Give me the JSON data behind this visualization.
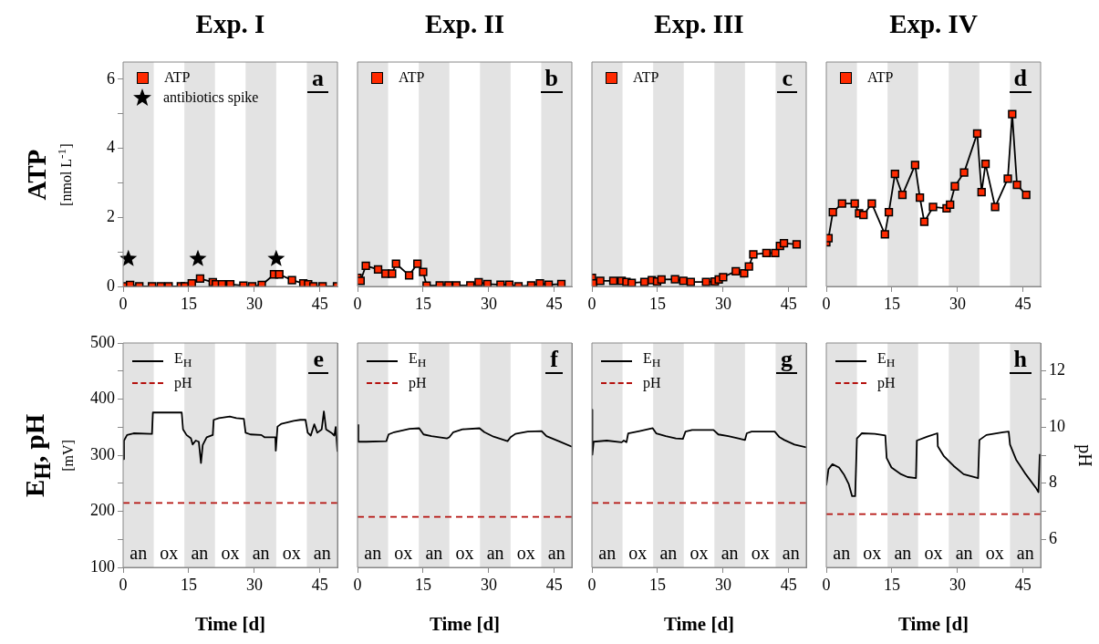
{
  "chart_data": [
    {
      "type": "line",
      "title": "Exp. I",
      "ylabel": "ATP\n[nmol L$^{-1}$]",
      "xlim": [
        0,
        49
      ],
      "xticks": [
        0,
        15,
        30,
        45
      ],
      "ylim": [
        0,
        6.5
      ],
      "yticks": [
        0,
        {
          "value": 1,
          "label": null
        },
        2,
        {
          "value": 3,
          "label": null
        },
        4,
        {
          "value": 5,
          "label": null
        },
        6
      ],
      "legend": "top left",
      "marker": "square",
      "annotations": [
        "a"
      ],
      "bands": [
        {
          "axis": "x",
          "from": 0,
          "to": 7,
          "color": "#e3e3e3"
        },
        {
          "axis": "x",
          "from": 14,
          "to": 21,
          "color": "#e3e3e3"
        },
        {
          "axis": "x",
          "from": 28,
          "to": 35,
          "color": "#e3e3e3"
        },
        {
          "axis": "x",
          "from": 42,
          "to": 49,
          "color": "#e3e3e3"
        }
      ],
      "series": [
        {
          "name": "ATP",
          "color": "#ff2a00",
          "x": [
            0,
            1.6,
            3.7,
            6.6,
            8.6,
            10.4,
            13.2,
            14.1,
            15.7,
            17.6,
            20.5,
            21.2,
            22.6,
            24.5,
            27.5,
            29.5,
            31.7,
            34.5,
            35.7,
            38.6,
            41.2,
            42.3,
            43.5,
            45.6,
            48.9
          ],
          "values": [
            0,
            0.04,
            0,
            0,
            0,
            0,
            0,
            0,
            0.09,
            0.23,
            0.12,
            0.06,
            0.06,
            0.06,
            0.02,
            0,
            0.04,
            0.35,
            0.35,
            0.18,
            0.09,
            0.06,
            0,
            0,
            0
          ]
        },
        {
          "name": "antibiotics spike",
          "type": "scatter",
          "marker": "star",
          "color": "#000000",
          "x": [
            1.2,
            17.1,
            35.0
          ],
          "values": [
            0.8,
            0.8,
            0.8
          ]
        }
      ]
    },
    {
      "type": "line",
      "title": "Exp. II",
      "xlim": [
        0,
        49
      ],
      "xticks": [
        0,
        15,
        30,
        45
      ],
      "ylim": [
        0,
        6.5
      ],
      "legend": "top left",
      "marker": "square",
      "annotations": [
        "b"
      ],
      "bands": [
        {
          "axis": "x",
          "from": 0,
          "to": 7,
          "color": "#e3e3e3"
        },
        {
          "axis": "x",
          "from": 14,
          "to": 21,
          "color": "#e3e3e3"
        },
        {
          "axis": "x",
          "from": 28,
          "to": 35,
          "color": "#e3e3e3"
        },
        {
          "axis": "x",
          "from": 42,
          "to": 49,
          "color": "#e3e3e3"
        }
      ],
      "series": [
        {
          "name": "ATP",
          "color": "#ff2a00",
          "x": [
            0,
            0.7,
            1.9,
            4.7,
            6.4,
            7.9,
            8.8,
            11.8,
            13.7,
            15.0,
            15.8,
            18.8,
            20.8,
            22.6,
            25.8,
            27.7,
            29.7,
            32.7,
            34.7,
            36.8,
            39.7,
            41.7,
            43.7,
            46.6
          ],
          "values": [
            0.25,
            0.16,
            0.6,
            0.49,
            0.37,
            0.37,
            0.66,
            0.32,
            0.66,
            0.42,
            0.02,
            0.03,
            0.03,
            0.03,
            0.03,
            0.12,
            0.07,
            0.05,
            0.05,
            0,
            0.03,
            0.09,
            0.05,
            0.07
          ]
        }
      ]
    },
    {
      "type": "line",
      "title": "Exp. III",
      "xlim": [
        0,
        49
      ],
      "xticks": [
        0,
        15,
        30,
        45
      ],
      "ylim": [
        0,
        6.5
      ],
      "legend": "top left",
      "marker": "square",
      "annotations": [
        "c"
      ],
      "bands": [
        {
          "axis": "x",
          "from": 0,
          "to": 7,
          "color": "#e3e3e3"
        },
        {
          "axis": "x",
          "from": 14,
          "to": 21,
          "color": "#e3e3e3"
        },
        {
          "axis": "x",
          "from": 28,
          "to": 35,
          "color": "#e3e3e3"
        },
        {
          "axis": "x",
          "from": 42,
          "to": 49,
          "color": "#e3e3e3"
        }
      ],
      "series": [
        {
          "name": "ATP",
          "color": "#ff2a00",
          "x": [
            0,
            0.3,
            1.9,
            4.9,
            6.8,
            7.9,
            9.1,
            12.0,
            13.7,
            14.9,
            15.9,
            19.0,
            20.9,
            22.6,
            26.1,
            28.1,
            29.0,
            30.0,
            32.9,
            34.8,
            35.9,
            36.9,
            39.9,
            41.9,
            43.0,
            43.9,
            46.8
          ],
          "values": [
            0.25,
            0.09,
            0.16,
            0.16,
            0.16,
            0.13,
            0.1,
            0.13,
            0.18,
            0.14,
            0.2,
            0.21,
            0.16,
            0.13,
            0.13,
            0.14,
            0.2,
            0.27,
            0.44,
            0.38,
            0.58,
            0.93,
            0.97,
            0.97,
            1.17,
            1.25,
            1.22
          ]
        }
      ]
    },
    {
      "type": "line",
      "title": "Exp. IV",
      "xlim": [
        0,
        49
      ],
      "xticks": [
        0,
        15,
        30,
        45
      ],
      "ylim": [
        0,
        6.5
      ],
      "legend": "top left",
      "marker": "square",
      "annotations": [
        "d"
      ],
      "bands": [
        {
          "axis": "x",
          "from": 0,
          "to": 7,
          "color": "#e3e3e3"
        },
        {
          "axis": "x",
          "from": 14,
          "to": 21,
          "color": "#e3e3e3"
        },
        {
          "axis": "x",
          "from": 28,
          "to": 35,
          "color": "#e3e3e3"
        },
        {
          "axis": "x",
          "from": 42,
          "to": 49,
          "color": "#e3e3e3"
        }
      ],
      "series": [
        {
          "name": "ATP",
          "color": "#ff2a00",
          "x": [
            0,
            0.5,
            1.5,
            3.6,
            6.5,
            7.5,
            8.5,
            10.4,
            13.4,
            14.3,
            15.7,
            17.4,
            20.3,
            21.4,
            22.4,
            24.4,
            27.5,
            28.3,
            29.4,
            31.5,
            34.5,
            35.5,
            36.4,
            38.6,
            41.5,
            42.5,
            43.6,
            45.7
          ],
          "values": [
            1.28,
            1.4,
            2.15,
            2.4,
            2.4,
            2.12,
            2.07,
            2.4,
            1.51,
            2.15,
            3.26,
            2.65,
            3.52,
            2.57,
            1.87,
            2.3,
            2.26,
            2.37,
            2.9,
            3.3,
            4.43,
            2.73,
            3.55,
            2.3,
            3.12,
            4.99,
            2.94,
            2.65
          ]
        }
      ]
    },
    {
      "type": "line",
      "xlabel": "Time [d]",
      "ylabel": "E$_{H}$, pH\n[mV]",
      "xlim": [
        0,
        49
      ],
      "xticks": [
        0,
        15,
        30,
        45
      ],
      "ylim": [
        100,
        500
      ],
      "yticks": [
        100,
        {
          "value": 150,
          "label": null
        },
        200,
        {
          "value": 250,
          "label": null
        },
        300,
        {
          "value": 350,
          "label": null
        },
        400,
        {
          "value": 450,
          "label": null
        },
        500
      ],
      "y2lim": [
        5,
        13
      ],
      "legend": "top left",
      "marker": "none",
      "annotations": [
        "e",
        "ox",
        "ox",
        "ox"
      ],
      "bands": [
        {
          "axis": "x",
          "from": 0,
          "to": 7,
          "label": "an",
          "color": "#e3e3e3"
        },
        {
          "axis": "x",
          "from": 14,
          "to": 21,
          "label": "an",
          "color": "#e3e3e3"
        },
        {
          "axis": "x",
          "from": 28,
          "to": 35,
          "label": "an",
          "color": "#e3e3e3"
        },
        {
          "axis": "x",
          "from": 42,
          "to": 49,
          "label": "an",
          "color": "#e3e3e3"
        }
      ],
      "series": [
        {
          "name": "E$_{H}$",
          "color": "#000000",
          "line_style": "solid",
          "x": [
            0,
            0.2,
            0.9,
            2.4,
            6.3,
            6.6,
            6.8,
            13.4,
            13.7,
            14.5,
            15.5,
            15.9,
            16.6,
            17.3,
            17.8,
            18.2,
            19.1,
            20.5,
            20.7,
            21.9,
            24.4,
            25.9,
            27.6,
            28.0,
            29.1,
            31.6,
            32.3,
            34.8,
            34.9,
            35.3,
            36.2,
            39.0,
            40.5,
            41.7,
            42.2,
            42.9,
            43.7,
            44.4,
            45.4,
            45.9,
            46.4,
            47.6,
            48.3,
            48.6,
            49.0
          ],
          "values": [
            293,
            326,
            336,
            339,
            338,
            338,
            376,
            376,
            346,
            336,
            330,
            319,
            326,
            324,
            286,
            318,
            332,
            336,
            363,
            366,
            369,
            366,
            365,
            340,
            337,
            336,
            332,
            332,
            308,
            351,
            356,
            361,
            363,
            363,
            340,
            335,
            355,
            340,
            346,
            378,
            346,
            340,
            335,
            350,
            306
          ]
        },
        {
          "name": "pH",
          "color": "#b5120f",
          "line_style": "dashed",
          "axis": "y2",
          "x": [
            0,
            49
          ],
          "values": [
            7.3,
            7.3
          ]
        }
      ]
    },
    {
      "type": "line",
      "xlabel": "Time [d]",
      "xlim": [
        0,
        49
      ],
      "xticks": [
        0,
        15,
        30,
        45
      ],
      "ylim": [
        100,
        500
      ],
      "y2lim": [
        5,
        13
      ],
      "legend": "top left",
      "marker": "none",
      "annotations": [
        "f",
        "ox",
        "ox",
        "ox"
      ],
      "bands": [
        {
          "axis": "x",
          "from": 0,
          "to": 7,
          "label": "an",
          "color": "#e3e3e3"
        },
        {
          "axis": "x",
          "from": 14,
          "to": 21,
          "label": "an",
          "color": "#e3e3e3"
        },
        {
          "axis": "x",
          "from": 28,
          "to": 35,
          "label": "an",
          "color": "#e3e3e3"
        },
        {
          "axis": "x",
          "from": 42,
          "to": 49,
          "label": "an",
          "color": "#e3e3e3"
        }
      ],
      "series": [
        {
          "name": "E$_{H}$",
          "color": "#000000",
          "line_style": "solid",
          "x": [
            0,
            0.2,
            2.0,
            6.6,
            7.1,
            8.4,
            11.9,
            14.1,
            15.1,
            16.9,
            20.5,
            21.0,
            21.9,
            24.0,
            27.9,
            29.0,
            31.1,
            34.3,
            35.0,
            36.1,
            38.9,
            42.1,
            43.2,
            46.0,
            49.0
          ],
          "values": [
            354,
            324,
            324,
            325,
            337,
            341,
            347,
            348,
            337,
            334,
            330,
            332,
            341,
            346,
            348,
            341,
            333,
            325,
            332,
            338,
            342,
            343,
            334,
            325,
            315
          ]
        },
        {
          "name": "pH",
          "color": "#b5120f",
          "line_style": "dashed",
          "axis": "y2",
          "x": [
            0,
            49
          ],
          "values": [
            6.8,
            6.8
          ]
        }
      ]
    },
    {
      "type": "line",
      "xlabel": "Time [d]",
      "xlim": [
        0,
        49
      ],
      "xticks": [
        0,
        15,
        30,
        45
      ],
      "ylim": [
        100,
        500
      ],
      "y2lim": [
        5,
        13
      ],
      "legend": "top left",
      "marker": "none",
      "annotations": [
        "g",
        "ox",
        "ox",
        "ox"
      ],
      "bands": [
        {
          "axis": "x",
          "from": 0,
          "to": 7,
          "label": "an",
          "color": "#e3e3e3"
        },
        {
          "axis": "x",
          "from": 14,
          "to": 21,
          "label": "an",
          "color": "#e3e3e3"
        },
        {
          "axis": "x",
          "from": 28,
          "to": 35,
          "label": "an",
          "color": "#e3e3e3"
        },
        {
          "axis": "x",
          "from": 42,
          "to": 49,
          "label": "an",
          "color": "#e3e3e3"
        }
      ],
      "series": [
        {
          "name": "E$_{H}$",
          "color": "#000000",
          "line_style": "solid",
          "x": [
            0,
            0.1,
            0.4,
            3.4,
            6.8,
            7.3,
            7.9,
            8.3,
            10.9,
            13.9,
            14.7,
            16.9,
            19.2,
            20.8,
            21.4,
            22.9,
            24.5,
            27.8,
            28.9,
            31.2,
            33.5,
            35.0,
            35.4,
            36.5,
            41.8,
            42.9,
            44.0,
            46.3,
            49.0
          ],
          "values": [
            381,
            301,
            324,
            326,
            323,
            326,
            323,
            339,
            343,
            348,
            339,
            334,
            330,
            329,
            342,
            345,
            345,
            345,
            337,
            334,
            330,
            327,
            339,
            342,
            342,
            332,
            327,
            319,
            314
          ]
        },
        {
          "name": "pH",
          "color": "#b5120f",
          "line_style": "dashed",
          "axis": "y2",
          "x": [
            0,
            49
          ],
          "values": [
            7.3,
            7.3
          ]
        }
      ]
    },
    {
      "type": "line",
      "xlabel": "Time [d]",
      "y2label": "pH",
      "xlim": [
        0,
        49
      ],
      "xticks": [
        0,
        15,
        30,
        45
      ],
      "ylim": [
        100,
        500
      ],
      "y2lim": [
        5,
        13
      ],
      "y2ticks": [
        6,
        {
          "value": 7,
          "label": null
        },
        8,
        {
          "value": 9,
          "label": null
        },
        10,
        {
          "value": 11,
          "label": null
        },
        12
      ],
      "legend": "top left",
      "marker": "none",
      "annotations": [
        "h",
        "ox",
        "ox",
        "ox"
      ],
      "bands": [
        {
          "axis": "x",
          "from": 0,
          "to": 7,
          "label": "an",
          "color": "#e3e3e3"
        },
        {
          "axis": "x",
          "from": 14,
          "to": 21,
          "label": "an",
          "color": "#e3e3e3"
        },
        {
          "axis": "x",
          "from": 28,
          "to": 35,
          "label": "an",
          "color": "#e3e3e3"
        },
        {
          "axis": "x",
          "from": 42,
          "to": 49,
          "label": "an",
          "color": "#e3e3e3"
        }
      ],
      "series": [
        {
          "name": "E$_{H}$",
          "color": "#000000",
          "line_style": "solid",
          "x": [
            0,
            0.5,
            1.4,
            2.9,
            4.0,
            5.1,
            5.9,
            6.6,
            7.0,
            8.1,
            11.1,
            13.5,
            13.8,
            14.9,
            17.1,
            18.6,
            20.5,
            20.7,
            23.1,
            25.4,
            25.5,
            26.9,
            29.1,
            31.4,
            34.7,
            35.0,
            36.6,
            40.4,
            41.7,
            42.0,
            43.4,
            45.6,
            47.9,
            48.5,
            48.8,
            49.0
          ],
          "values": [
            246,
            275,
            284,
            278,
            266,
            249,
            227,
            227,
            330,
            339,
            338,
            335,
            295,
            278,
            266,
            261,
            259,
            326,
            333,
            339,
            316,
            298,
            281,
            266,
            259,
            327,
            336,
            341,
            342,
            319,
            292,
            266,
            242,
            234,
            301,
            298
          ]
        },
        {
          "name": "pH",
          "color": "#b5120f",
          "line_style": "dashed",
          "axis": "y2",
          "x": [
            0,
            49
          ],
          "values": [
            6.9,
            6.9
          ]
        }
      ]
    }
  ]
}
